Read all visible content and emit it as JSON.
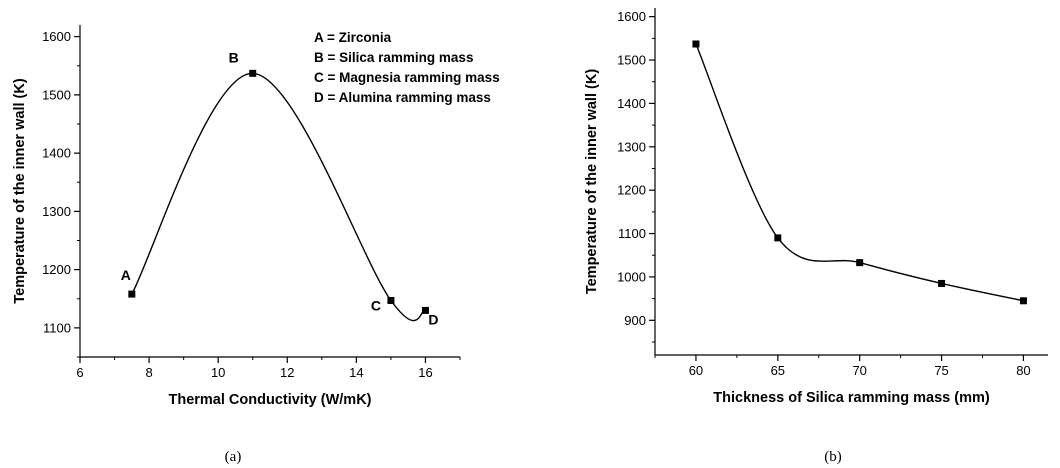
{
  "chart_data": [
    {
      "type": "line",
      "caption": "(a)",
      "xlabel": "Thermal Conductivity (W/mK)",
      "ylabel": "Temperature of the inner wall (K)",
      "xlim": [
        6,
        17
      ],
      "ylim": [
        1050,
        1620
      ],
      "xticks": [
        6,
        8,
        10,
        12,
        14,
        16
      ],
      "yticks": [
        1100,
        1200,
        1300,
        1400,
        1500,
        1600
      ],
      "series": [
        {
          "x": [
            7.5,
            11,
            15,
            16
          ],
          "y": [
            1158,
            1537,
            1147,
            1130
          ],
          "labels": [
            "A",
            "B",
            "C",
            "D"
          ]
        }
      ],
      "legend": [
        "A = Zirconia",
        "B = Silica ramming mass",
        "C = Magnesia ramming mass",
        "D = Alumina ramming mass"
      ],
      "legend_position": "top-right"
    },
    {
      "type": "line",
      "caption": "(b)",
      "xlabel": "Thickness of Silica ramming mass (mm)",
      "ylabel": "Temperature of the inner wall (K)",
      "xlim": [
        57.5,
        81.5
      ],
      "ylim": [
        820,
        1620
      ],
      "xticks": [
        60,
        65,
        70,
        75,
        80
      ],
      "yticks": [
        900,
        1000,
        1100,
        1200,
        1300,
        1400,
        1500,
        1600
      ],
      "series": [
        {
          "x": [
            60,
            65,
            70,
            75,
            80
          ],
          "y": [
            1537,
            1090,
            1033,
            985,
            945
          ]
        }
      ]
    }
  ]
}
